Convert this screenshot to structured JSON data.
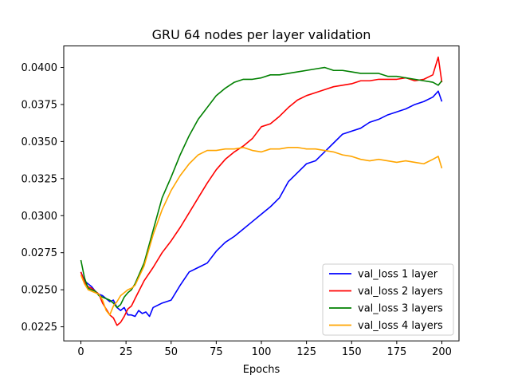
{
  "chart_data": {
    "type": "line",
    "title": "GRU 64 nodes per layer validation",
    "xlabel": "Epochs",
    "ylabel": "",
    "xlim": [
      -9.5,
      209.5
    ],
    "ylim": [
      0.02155,
      0.04145
    ],
    "xticks": [
      0,
      25,
      50,
      75,
      100,
      125,
      150,
      175,
      200
    ],
    "xtick_labels": [
      "0",
      "25",
      "50",
      "75",
      "100",
      "125",
      "150",
      "175",
      "200"
    ],
    "yticks": [
      0.0225,
      0.025,
      0.0275,
      0.03,
      0.0325,
      0.035,
      0.0375,
      0.04
    ],
    "ytick_labels": [
      "0.0225",
      "0.0250",
      "0.0275",
      "0.0300",
      "0.0325",
      "0.0350",
      "0.0375",
      "0.0400"
    ],
    "grid": false,
    "legend_position": "lower-right",
    "series": [
      {
        "name": "val_loss 1 layer",
        "color": "#0000ff",
        "x": [
          0,
          2,
          4,
          6,
          8,
          10,
          12,
          14,
          16,
          18,
          20,
          22,
          24,
          26,
          28,
          30,
          32,
          34,
          36,
          38,
          40,
          45,
          50,
          55,
          60,
          65,
          70,
          75,
          80,
          85,
          90,
          95,
          100,
          105,
          110,
          115,
          120,
          125,
          130,
          135,
          140,
          145,
          150,
          155,
          160,
          165,
          170,
          175,
          180,
          185,
          190,
          195,
          198,
          200
        ],
        "y": [
          0.0262,
          0.0256,
          0.0254,
          0.0252,
          0.0249,
          0.0247,
          0.0246,
          0.0244,
          0.0242,
          0.0243,
          0.0238,
          0.0236,
          0.0238,
          0.0233,
          0.0233,
          0.0232,
          0.0236,
          0.0234,
          0.0235,
          0.0232,
          0.0238,
          0.0241,
          0.0243,
          0.0253,
          0.0262,
          0.0265,
          0.0268,
          0.0276,
          0.0282,
          0.0286,
          0.0291,
          0.0296,
          0.0301,
          0.0306,
          0.0312,
          0.0323,
          0.0329,
          0.0335,
          0.0337,
          0.0343,
          0.0349,
          0.0355,
          0.0357,
          0.0359,
          0.0363,
          0.0365,
          0.0368,
          0.037,
          0.0372,
          0.0375,
          0.0377,
          0.038,
          0.0384,
          0.0377
        ]
      },
      {
        "name": "val_loss 2 layers",
        "color": "#ff0000",
        "x": [
          0,
          2,
          4,
          6,
          8,
          10,
          12,
          14,
          16,
          18,
          20,
          22,
          24,
          26,
          28,
          30,
          35,
          40,
          45,
          50,
          55,
          60,
          65,
          70,
          75,
          80,
          85,
          90,
          95,
          100,
          105,
          110,
          115,
          120,
          125,
          130,
          135,
          140,
          145,
          150,
          155,
          160,
          165,
          170,
          175,
          180,
          185,
          190,
          195,
          198,
          200
        ],
        "y": [
          0.0262,
          0.0255,
          0.0252,
          0.0251,
          0.0249,
          0.0247,
          0.0241,
          0.0237,
          0.0233,
          0.0231,
          0.0226,
          0.0228,
          0.0232,
          0.0237,
          0.0239,
          0.0244,
          0.0256,
          0.0265,
          0.0275,
          0.0283,
          0.0292,
          0.0302,
          0.0312,
          0.0322,
          0.0331,
          0.0338,
          0.0343,
          0.0347,
          0.0352,
          0.036,
          0.0362,
          0.0367,
          0.0373,
          0.0378,
          0.0381,
          0.0383,
          0.0385,
          0.0387,
          0.0388,
          0.0389,
          0.0391,
          0.0391,
          0.0392,
          0.0392,
          0.0392,
          0.0393,
          0.0391,
          0.0392,
          0.0395,
          0.0407,
          0.039
        ]
      },
      {
        "name": "val_loss 3 layers",
        "color": "#008000",
        "x": [
          0,
          2,
          4,
          6,
          8,
          10,
          12,
          14,
          16,
          18,
          20,
          22,
          24,
          26,
          28,
          30,
          35,
          40,
          45,
          50,
          55,
          60,
          65,
          70,
          75,
          80,
          85,
          90,
          95,
          100,
          105,
          110,
          115,
          120,
          125,
          130,
          135,
          140,
          145,
          150,
          155,
          160,
          165,
          170,
          175,
          180,
          185,
          190,
          195,
          198,
          200
        ],
        "y": [
          0.027,
          0.0258,
          0.0251,
          0.025,
          0.0249,
          0.0246,
          0.0245,
          0.0244,
          0.0243,
          0.0241,
          0.0238,
          0.024,
          0.0245,
          0.0248,
          0.025,
          0.0254,
          0.0268,
          0.029,
          0.0312,
          0.0326,
          0.0341,
          0.0354,
          0.0365,
          0.0373,
          0.0381,
          0.0386,
          0.039,
          0.0392,
          0.0392,
          0.0393,
          0.0395,
          0.0395,
          0.0396,
          0.0397,
          0.0398,
          0.0399,
          0.04,
          0.0398,
          0.0398,
          0.0397,
          0.0396,
          0.0396,
          0.0396,
          0.0394,
          0.0394,
          0.0393,
          0.0392,
          0.0391,
          0.039,
          0.0388,
          0.0391
        ]
      },
      {
        "name": "val_loss 4 layers",
        "color": "#ffa500",
        "x": [
          0,
          2,
          4,
          6,
          8,
          10,
          12,
          14,
          16,
          18,
          20,
          22,
          24,
          26,
          28,
          30,
          35,
          40,
          45,
          50,
          55,
          60,
          65,
          70,
          75,
          80,
          85,
          90,
          95,
          100,
          105,
          110,
          115,
          120,
          125,
          130,
          135,
          140,
          145,
          150,
          155,
          160,
          165,
          170,
          175,
          180,
          185,
          190,
          195,
          198,
          200
        ],
        "y": [
          0.026,
          0.0254,
          0.025,
          0.0249,
          0.0248,
          0.0247,
          0.0243,
          0.0236,
          0.0233,
          0.0239,
          0.0242,
          0.0246,
          0.0248,
          0.025,
          0.0251,
          0.0253,
          0.0266,
          0.0287,
          0.0304,
          0.0317,
          0.0327,
          0.0335,
          0.0341,
          0.0344,
          0.0344,
          0.0345,
          0.0345,
          0.0346,
          0.0344,
          0.0343,
          0.0345,
          0.0345,
          0.0346,
          0.0346,
          0.0345,
          0.0345,
          0.0344,
          0.0343,
          0.0341,
          0.034,
          0.0338,
          0.0337,
          0.0338,
          0.0337,
          0.0336,
          0.0337,
          0.0336,
          0.0335,
          0.0338,
          0.034,
          0.0332
        ]
      }
    ]
  }
}
